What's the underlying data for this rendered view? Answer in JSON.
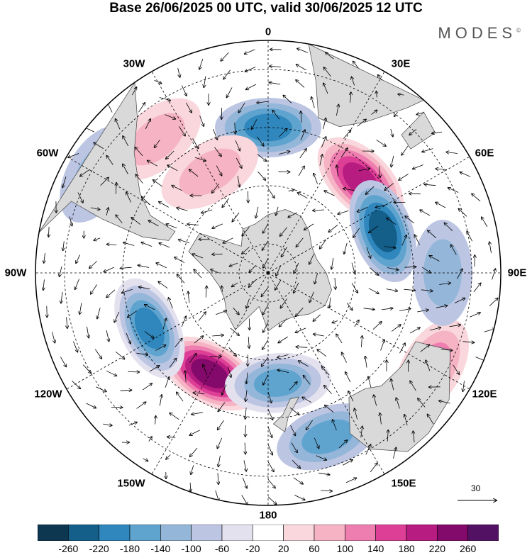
{
  "title": "Base 26/06/2025 00 UTC, valid 30/06/2025 12 UTC",
  "brand": "MODES",
  "brand_mark": "©",
  "longitude_labels": {
    "top": "0",
    "top_right": "30E",
    "right_upper": "60E",
    "right": "90E",
    "right_lower": "120E",
    "bottom_right": "150E",
    "bottom": "180",
    "bottom_left": "150W",
    "left_lower": "120W",
    "left": "90W",
    "left_upper": "60W",
    "top_left": "30W"
  },
  "reference_vector_value": "30",
  "colorbar": {
    "ticks": [
      "-260",
      "-220",
      "-180",
      "-140",
      "-100",
      "-60",
      "-20",
      "20",
      "60",
      "100",
      "140",
      "180",
      "220",
      "260"
    ],
    "colors": [
      "#0d3650",
      "#145f8a",
      "#2f87bd",
      "#5fa3cf",
      "#93b6d9",
      "#bcc5e2",
      "#e4e1ef",
      "#ffffff",
      "#f9d7dc",
      "#f5b3c3",
      "#ee7db0",
      "#dc3f95",
      "#b71c80",
      "#830a6a",
      "#531163"
    ]
  },
  "colors": {
    "land": "#d9d9d9",
    "coast": "#444444",
    "grid": "#000000"
  },
  "anomaly_centers": [
    {
      "value": 200,
      "lon": 45,
      "lat": -45
    },
    {
      "value": 260,
      "lon": -150,
      "lat": -50
    },
    {
      "value": -220,
      "lon": 70,
      "lat": -48
    },
    {
      "value": -200,
      "lon": -115,
      "lat": -45
    },
    {
      "value": -180,
      "lon": 0,
      "lat": -40
    },
    {
      "value": -160,
      "lon": 175,
      "lat": -52
    },
    {
      "value": -140,
      "lon": 160,
      "lat": -30
    },
    {
      "value": 120,
      "lon": 120,
      "lat": -25
    },
    {
      "value": 100,
      "lon": -40,
      "lat": -30
    },
    {
      "value": -100,
      "lon": -60,
      "lat": -22
    },
    {
      "value": 100,
      "lon": -30,
      "lat": -50
    },
    {
      "value": -100,
      "lon": 90,
      "lat": -30
    }
  ]
}
